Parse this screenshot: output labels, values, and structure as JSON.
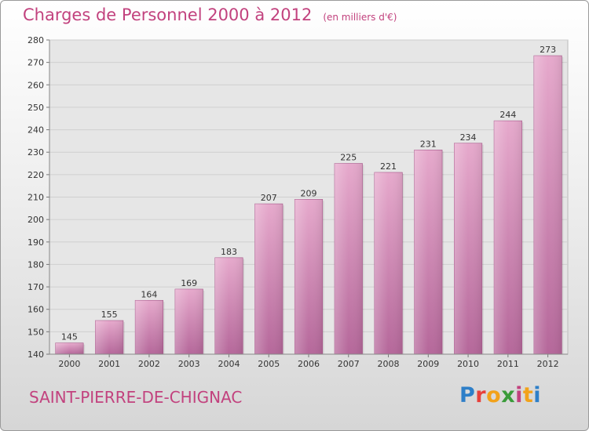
{
  "chart_data": {
    "type": "bar",
    "title": "Charges de Personnel 2000 à 2012",
    "subtitle": "(en milliers d'€)",
    "categories": [
      "2000",
      "2001",
      "2002",
      "2003",
      "2004",
      "2005",
      "2006",
      "2007",
      "2008",
      "2009",
      "2010",
      "2011",
      "2012"
    ],
    "values": [
      145,
      155,
      164,
      169,
      183,
      207,
      209,
      225,
      221,
      231,
      234,
      244,
      273
    ],
    "ylim": [
      140,
      280
    ],
    "yticks": [
      140,
      150,
      160,
      170,
      180,
      190,
      200,
      210,
      220,
      230,
      240,
      250,
      260,
      270,
      280
    ],
    "grid": true,
    "bar_color": "#cc77a8"
  },
  "commune": "SAINT-PIERRE-DE-CHIGNAC",
  "logo": {
    "letters": [
      "P",
      "r",
      "o",
      "x",
      "i",
      "t",
      "i"
    ],
    "colors": [
      "#2e7fc8",
      "#e8403b",
      "#f2a21a",
      "#3a9b3a",
      "#c2427e",
      "#f2a21a",
      "#2e7fc8"
    ]
  }
}
